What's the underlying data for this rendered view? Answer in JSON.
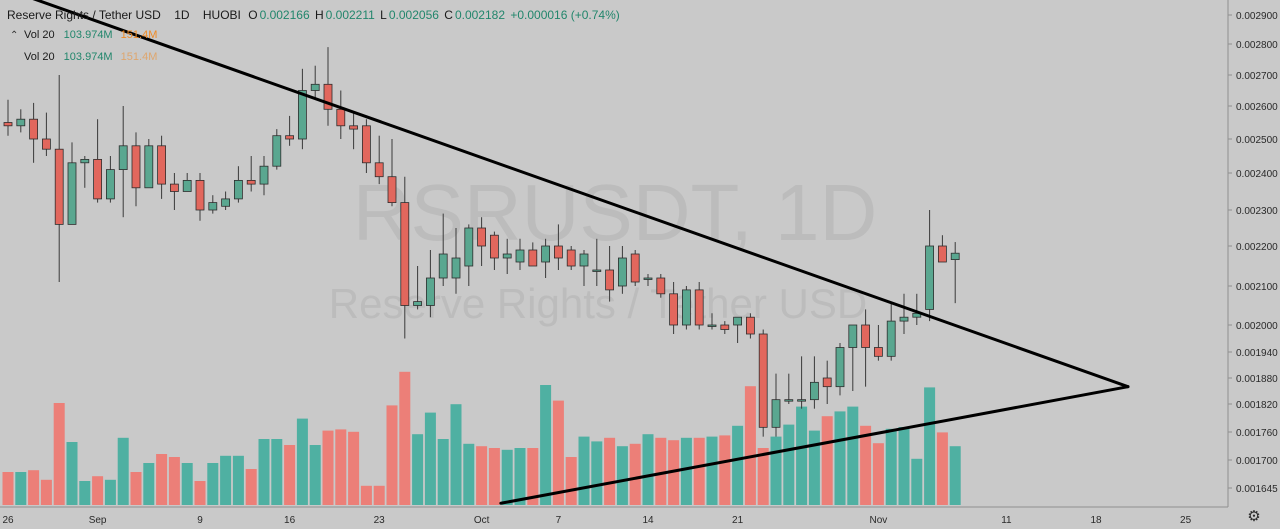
{
  "header": {
    "symbol": "Reserve Rights / Tether USD",
    "timeframe": "1D",
    "exchange": "HUOBI",
    "open_label": "O",
    "open": "0.002166",
    "high_label": "H",
    "high": "0.002211",
    "low_label": "L",
    "low": "0.002056",
    "close_label": "C",
    "close": "0.002182",
    "change": "+0.000016 (+0.74%)"
  },
  "volume_legend": [
    {
      "name": "Vol",
      "length": "20",
      "value": "103.974M",
      "ma": "151.4M"
    },
    {
      "name": "Vol",
      "length": "20",
      "value": "103.974M",
      "ma": "151.4M"
    }
  ],
  "watermark": {
    "ticker": "RSRUSDT, 1D",
    "name": "Reserve Rights / Tether USD"
  },
  "colors": {
    "up": "#5aa790",
    "down": "#e2675d",
    "vol_up": "#4fb0a2",
    "vol_down": "#ec7f78",
    "background": "#c9c9c9",
    "trendline": "#000000"
  },
  "chart_data": {
    "type": "candlestick",
    "y_axis_ticks": [
      "0.002900",
      "0.002800",
      "0.002700",
      "0.002600",
      "0.002500",
      "0.002400",
      "0.002300",
      "0.002200",
      "0.002100",
      "0.002000",
      "0.001940",
      "0.001880",
      "0.001820",
      "0.001760",
      "0.001700",
      "0.001645"
    ],
    "x_axis_labels": [
      {
        "label": "26",
        "day": 0
      },
      {
        "label": "Sep",
        "day": 7
      },
      {
        "label": "9",
        "day": 15
      },
      {
        "label": "16",
        "day": 22
      },
      {
        "label": "23",
        "day": 29
      },
      {
        "label": "Oct",
        "day": 37
      },
      {
        "label": "7",
        "day": 43
      },
      {
        "label": "14",
        "day": 50
      },
      {
        "label": "21",
        "day": 57
      },
      {
        "label": "Nov",
        "day": 68
      },
      {
        "label": "11",
        "day": 78
      },
      {
        "label": "18",
        "day": 85
      },
      {
        "label": "25",
        "day": 92
      }
    ],
    "candles": [
      {
        "o": 0.00255,
        "h": 0.00262,
        "l": 0.00251,
        "c": 0.00254
      },
      {
        "o": 0.00254,
        "h": 0.00259,
        "l": 0.00252,
        "c": 0.00256
      },
      {
        "o": 0.00256,
        "h": 0.00261,
        "l": 0.00243,
        "c": 0.0025
      },
      {
        "o": 0.0025,
        "h": 0.00258,
        "l": 0.00245,
        "c": 0.00247
      },
      {
        "o": 0.00247,
        "h": 0.0027,
        "l": 0.00211,
        "c": 0.00226
      },
      {
        "o": 0.00226,
        "h": 0.00249,
        "l": 0.00226,
        "c": 0.00243
      },
      {
        "o": 0.00243,
        "h": 0.00245,
        "l": 0.00236,
        "c": 0.00244
      },
      {
        "o": 0.00244,
        "h": 0.00256,
        "l": 0.00232,
        "c": 0.00233
      },
      {
        "o": 0.00233,
        "h": 0.00245,
        "l": 0.00232,
        "c": 0.00241
      },
      {
        "o": 0.00241,
        "h": 0.0026,
        "l": 0.00228,
        "c": 0.00248
      },
      {
        "o": 0.00248,
        "h": 0.00252,
        "l": 0.00231,
        "c": 0.00236
      },
      {
        "o": 0.00236,
        "h": 0.0025,
        "l": 0.00236,
        "c": 0.00248
      },
      {
        "o": 0.00248,
        "h": 0.00251,
        "l": 0.00233,
        "c": 0.00237
      },
      {
        "o": 0.00237,
        "h": 0.0024,
        "l": 0.0023,
        "c": 0.00235
      },
      {
        "o": 0.00235,
        "h": 0.0024,
        "l": 0.00235,
        "c": 0.00238
      },
      {
        "o": 0.00238,
        "h": 0.0024,
        "l": 0.00227,
        "c": 0.0023
      },
      {
        "o": 0.0023,
        "h": 0.00234,
        "l": 0.00229,
        "c": 0.00232
      },
      {
        "o": 0.00231,
        "h": 0.00235,
        "l": 0.0023,
        "c": 0.00233
      },
      {
        "o": 0.00233,
        "h": 0.00242,
        "l": 0.00232,
        "c": 0.00238
      },
      {
        "o": 0.00238,
        "h": 0.00245,
        "l": 0.00235,
        "c": 0.00237
      },
      {
        "o": 0.00237,
        "h": 0.00245,
        "l": 0.00234,
        "c": 0.00242
      },
      {
        "o": 0.00242,
        "h": 0.00253,
        "l": 0.00241,
        "c": 0.00251
      },
      {
        "o": 0.00251,
        "h": 0.00257,
        "l": 0.00248,
        "c": 0.0025
      },
      {
        "o": 0.0025,
        "h": 0.00272,
        "l": 0.00247,
        "c": 0.00265
      },
      {
        "o": 0.00265,
        "h": 0.00273,
        "l": 0.00262,
        "c": 0.00267
      },
      {
        "o": 0.00267,
        "h": 0.00279,
        "l": 0.00254,
        "c": 0.00259
      },
      {
        "o": 0.00259,
        "h": 0.00265,
        "l": 0.0025,
        "c": 0.00254
      },
      {
        "o": 0.00254,
        "h": 0.00258,
        "l": 0.00247,
        "c": 0.00253
      },
      {
        "o": 0.00254,
        "h": 0.00256,
        "l": 0.0024,
        "c": 0.00243
      },
      {
        "o": 0.00243,
        "h": 0.00251,
        "l": 0.00237,
        "c": 0.00239
      },
      {
        "o": 0.00239,
        "h": 0.0025,
        "l": 0.00231,
        "c": 0.00232
      },
      {
        "o": 0.00232,
        "h": 0.00239,
        "l": 0.00197,
        "c": 0.00205
      },
      {
        "o": 0.00205,
        "h": 0.00215,
        "l": 0.00204,
        "c": 0.00206
      },
      {
        "o": 0.00205,
        "h": 0.00219,
        "l": 0.00202,
        "c": 0.00212
      },
      {
        "o": 0.00212,
        "h": 0.00229,
        "l": 0.0021,
        "c": 0.00218
      },
      {
        "o": 0.00212,
        "h": 0.00225,
        "l": 0.00208,
        "c": 0.00217
      },
      {
        "o": 0.00215,
        "h": 0.00226,
        "l": 0.0021,
        "c": 0.00225
      },
      {
        "o": 0.00225,
        "h": 0.00228,
        "l": 0.00215,
        "c": 0.0022
      },
      {
        "o": 0.00223,
        "h": 0.00224,
        "l": 0.00214,
        "c": 0.00217
      },
      {
        "o": 0.00217,
        "h": 0.00222,
        "l": 0.00213,
        "c": 0.00218
      },
      {
        "o": 0.00216,
        "h": 0.00222,
        "l": 0.00214,
        "c": 0.00219
      },
      {
        "o": 0.00219,
        "h": 0.00221,
        "l": 0.00215,
        "c": 0.00215
      },
      {
        "o": 0.00216,
        "h": 0.00222,
        "l": 0.00212,
        "c": 0.0022
      },
      {
        "o": 0.0022,
        "h": 0.00226,
        "l": 0.00214,
        "c": 0.00217
      },
      {
        "o": 0.00219,
        "h": 0.0022,
        "l": 0.00214,
        "c": 0.00215
      },
      {
        "o": 0.00215,
        "h": 0.00219,
        "l": 0.0021,
        "c": 0.00218
      },
      {
        "o": 0.00214,
        "h": 0.00222,
        "l": 0.0021,
        "c": 0.00214
      },
      {
        "o": 0.00214,
        "h": 0.0022,
        "l": 0.00206,
        "c": 0.00209
      },
      {
        "o": 0.0021,
        "h": 0.0022,
        "l": 0.00208,
        "c": 0.00217
      },
      {
        "o": 0.00218,
        "h": 0.00219,
        "l": 0.0021,
        "c": 0.00211
      },
      {
        "o": 0.00212,
        "h": 0.00213,
        "l": 0.0021,
        "c": 0.00212
      },
      {
        "o": 0.00212,
        "h": 0.00213,
        "l": 0.00207,
        "c": 0.00208
      },
      {
        "o": 0.00208,
        "h": 0.00211,
        "l": 0.00198,
        "c": 0.002
      },
      {
        "o": 0.002,
        "h": 0.0021,
        "l": 0.00199,
        "c": 0.00209
      },
      {
        "o": 0.00209,
        "h": 0.00211,
        "l": 0.00199,
        "c": 0.002
      },
      {
        "o": 0.002,
        "h": 0.00203,
        "l": 0.00199,
        "c": 0.002
      },
      {
        "o": 0.002,
        "h": 0.00201,
        "l": 0.00198,
        "c": 0.00199
      },
      {
        "o": 0.002,
        "h": 0.00202,
        "l": 0.00196,
        "c": 0.00202
      },
      {
        "o": 0.00202,
        "h": 0.00203,
        "l": 0.00197,
        "c": 0.00198
      },
      {
        "o": 0.00198,
        "h": 0.00199,
        "l": 0.00175,
        "c": 0.00177
      },
      {
        "o": 0.00177,
        "h": 0.00189,
        "l": 0.00175,
        "c": 0.00183
      },
      {
        "o": 0.00183,
        "h": 0.00189,
        "l": 0.00182,
        "c": 0.00183
      },
      {
        "o": 0.00183,
        "h": 0.00193,
        "l": 0.00181,
        "c": 0.00183
      },
      {
        "o": 0.00183,
        "h": 0.00193,
        "l": 0.00181,
        "c": 0.00187
      },
      {
        "o": 0.00188,
        "h": 0.00192,
        "l": 0.00182,
        "c": 0.00186
      },
      {
        "o": 0.00186,
        "h": 0.00196,
        "l": 0.00184,
        "c": 0.00195
      },
      {
        "o": 0.00195,
        "h": 0.00199,
        "l": 0.00185,
        "c": 0.002
      },
      {
        "o": 0.002,
        "h": 0.00204,
        "l": 0.00186,
        "c": 0.00195
      },
      {
        "o": 0.00195,
        "h": 0.002,
        "l": 0.00192,
        "c": 0.00193
      },
      {
        "o": 0.00193,
        "h": 0.00206,
        "l": 0.00192,
        "c": 0.00201
      },
      {
        "o": 0.00201,
        "h": 0.00208,
        "l": 0.00198,
        "c": 0.00202
      },
      {
        "o": 0.00202,
        "h": 0.00208,
        "l": 0.002,
        "c": 0.00203
      },
      {
        "o": 0.00204,
        "h": 0.0023,
        "l": 0.00201,
        "c": 0.0022
      },
      {
        "o": 0.0022,
        "h": 0.00223,
        "l": 0.00217,
        "c": 0.00216
      },
      {
        "o": 0.002166,
        "h": 0.002211,
        "l": 0.002056,
        "c": 0.002182
      }
    ],
    "volumes": [
      0.55,
      0.55,
      0.58,
      0.42,
      1.7,
      1.05,
      0.4,
      0.48,
      0.42,
      1.12,
      0.55,
      0.7,
      0.85,
      0.8,
      0.7,
      0.4,
      0.7,
      0.82,
      0.82,
      0.6,
      1.1,
      1.1,
      1.0,
      1.44,
      1.0,
      1.24,
      1.26,
      1.22,
      0.32,
      0.32,
      1.66,
      2.22,
      1.18,
      1.54,
      1.1,
      1.68,
      1.02,
      0.98,
      0.95,
      0.92,
      0.95,
      0.95,
      2.0,
      1.74,
      0.8,
      1.14,
      1.06,
      1.12,
      0.98,
      1.02,
      1.18,
      1.12,
      1.08,
      1.12,
      1.12,
      1.14,
      1.16,
      1.32,
      1.98,
      0.95,
      1.14,
      1.34,
      1.64,
      1.24,
      1.48,
      1.56,
      1.64,
      1.32,
      1.03,
      1.27,
      1.3,
      0.77,
      1.96,
      1.21,
      0.98
    ],
    "volume_unit": "relative",
    "trendlines": [
      {
        "from": {
          "day": -0.5,
          "price": 0.002995
        },
        "to": {
          "day": 87.5,
          "price": 0.00186
        }
      },
      {
        "from": {
          "day": 38.5,
          "price": 0.001615
        },
        "to": {
          "day": 87.5,
          "price": 0.00186
        }
      }
    ]
  }
}
